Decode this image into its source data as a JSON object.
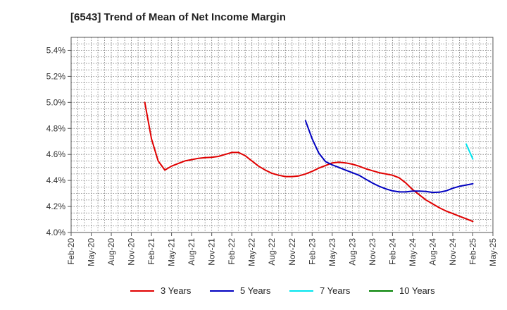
{
  "chart_data": {
    "type": "line",
    "title": "[6543]  Trend of Mean of Net Income Margin",
    "xlabel": "",
    "ylabel": "",
    "x_ticks": [
      "Feb-20",
      "May-20",
      "Aug-20",
      "Nov-20",
      "Feb-21",
      "May-21",
      "Aug-21",
      "Nov-21",
      "Feb-22",
      "May-22",
      "Aug-22",
      "Nov-22",
      "Feb-23",
      "May-23",
      "Aug-23",
      "Nov-23",
      "Feb-24",
      "May-24",
      "Aug-24",
      "Nov-24",
      "Feb-25",
      "May-25"
    ],
    "y_ticks": [
      "4.0%",
      "4.2%",
      "4.4%",
      "4.6%",
      "4.8%",
      "5.0%",
      "5.2%",
      "5.4%"
    ],
    "ylim": [
      4.0,
      5.5
    ],
    "grid": true,
    "legend_position": "bottom",
    "series": [
      {
        "name": "3 Years",
        "color": "#e00000",
        "points": [
          [
            "Jan-21",
            5.0
          ],
          [
            "Feb-21",
            4.72
          ],
          [
            "Mar-21",
            4.55
          ],
          [
            "Apr-21",
            4.48
          ],
          [
            "May-21",
            4.51
          ],
          [
            "Jun-21",
            4.53
          ],
          [
            "Jul-21",
            4.55
          ],
          [
            "Aug-21",
            4.56
          ],
          [
            "Sep-21",
            4.57
          ],
          [
            "Oct-21",
            4.575
          ],
          [
            "Nov-21",
            4.578
          ],
          [
            "Dec-21",
            4.585
          ],
          [
            "Jan-22",
            4.6
          ],
          [
            "Feb-22",
            4.615
          ],
          [
            "Mar-22",
            4.615
          ],
          [
            "Apr-22",
            4.59
          ],
          [
            "May-22",
            4.55
          ],
          [
            "Jun-22",
            4.51
          ],
          [
            "Jul-22",
            4.48
          ],
          [
            "Aug-22",
            4.455
          ],
          [
            "Sep-22",
            4.44
          ],
          [
            "Oct-22",
            4.43
          ],
          [
            "Nov-22",
            4.43
          ],
          [
            "Dec-22",
            4.435
          ],
          [
            "Jan-23",
            4.45
          ],
          [
            "Feb-23",
            4.47
          ],
          [
            "Mar-23",
            4.495
          ],
          [
            "Apr-23",
            4.515
          ],
          [
            "May-23",
            4.535
          ],
          [
            "Jun-23",
            4.54
          ],
          [
            "Jul-23",
            4.535
          ],
          [
            "Aug-23",
            4.525
          ],
          [
            "Sep-23",
            4.51
          ],
          [
            "Oct-23",
            4.49
          ],
          [
            "Nov-23",
            4.475
          ],
          [
            "Dec-23",
            4.46
          ],
          [
            "Jan-24",
            4.45
          ],
          [
            "Feb-24",
            4.44
          ],
          [
            "Mar-24",
            4.42
          ],
          [
            "Apr-24",
            4.38
          ],
          [
            "May-24",
            4.33
          ],
          [
            "Jun-24",
            4.29
          ],
          [
            "Jul-24",
            4.25
          ],
          [
            "Aug-24",
            4.22
          ],
          [
            "Sep-24",
            4.19
          ],
          [
            "Oct-24",
            4.165
          ],
          [
            "Nov-24",
            4.145
          ],
          [
            "Dec-24",
            4.125
          ],
          [
            "Jan-25",
            4.105
          ],
          [
            "Feb-25",
            4.085
          ]
        ]
      },
      {
        "name": "5 Years",
        "color": "#0000c0",
        "points": [
          [
            "Jan-23",
            4.86
          ],
          [
            "Feb-23",
            4.72
          ],
          [
            "Mar-23",
            4.61
          ],
          [
            "Apr-23",
            4.545
          ],
          [
            "May-23",
            4.52
          ],
          [
            "Jun-23",
            4.5
          ],
          [
            "Jul-23",
            4.48
          ],
          [
            "Aug-23",
            4.46
          ],
          [
            "Sep-23",
            4.44
          ],
          [
            "Oct-23",
            4.41
          ],
          [
            "Nov-23",
            4.38
          ],
          [
            "Dec-23",
            4.355
          ],
          [
            "Jan-24",
            4.335
          ],
          [
            "Feb-24",
            4.32
          ],
          [
            "Mar-24",
            4.312
          ],
          [
            "Apr-24",
            4.312
          ],
          [
            "May-24",
            4.318
          ],
          [
            "Jun-24",
            4.318
          ],
          [
            "Jul-24",
            4.315
          ],
          [
            "Aug-24",
            4.308
          ],
          [
            "Sep-24",
            4.31
          ],
          [
            "Oct-24",
            4.32
          ],
          [
            "Nov-24",
            4.34
          ],
          [
            "Dec-24",
            4.355
          ],
          [
            "Jan-25",
            4.365
          ],
          [
            "Feb-25",
            4.375
          ]
        ]
      },
      {
        "name": "7 Years",
        "color": "#00e5ee",
        "points": [
          [
            "Jan-25",
            4.68
          ],
          [
            "Feb-25",
            4.565
          ]
        ]
      },
      {
        "name": "10 Years",
        "color": "#008000",
        "points": []
      }
    ]
  }
}
